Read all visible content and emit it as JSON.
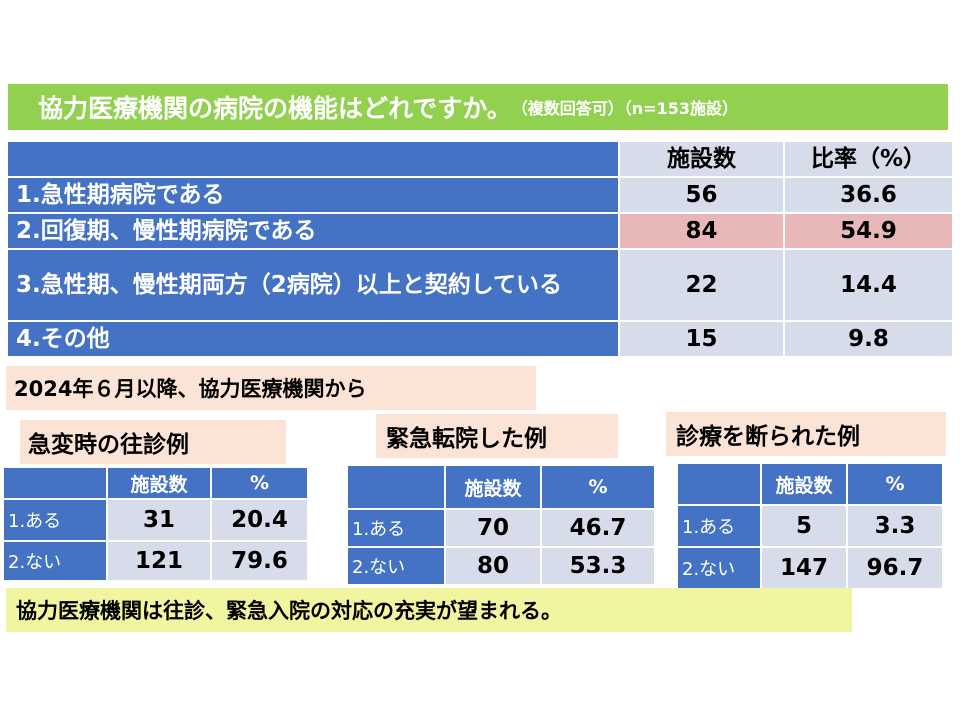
{
  "title": {
    "main": "協力医療機関の病院の機能はどれですか。",
    "sub": "（複数回答可）（n=153施設）"
  },
  "main_table": {
    "headers": [
      "施設数",
      "比率（%）"
    ],
    "rows": [
      {
        "label": "1.急性期病院である",
        "count": "56",
        "ratio": "36.6"
      },
      {
        "label": "2.回復期、慢性期病院である",
        "count": "84",
        "ratio": "54.9"
      },
      {
        "label": "3.急性期、慢性期両方（2病院）以上と契約している",
        "count": "22",
        "ratio": "14.4"
      },
      {
        "label": "4.その他",
        "count": "15",
        "ratio": "9.8"
      }
    ]
  },
  "period_label": "2024年６月以降、協力医療機関から",
  "sections": [
    {
      "title": "急変時の往診例",
      "headers": [
        "施設数",
        "%"
      ],
      "rows": [
        {
          "label": "1.ある",
          "count": "31",
          "pct": "20.4"
        },
        {
          "label": "2.ない",
          "count": "121",
          "pct": "79.6"
        }
      ]
    },
    {
      "title": "緊急転院した例",
      "headers": [
        "施設数",
        "%"
      ],
      "rows": [
        {
          "label": "1.ある",
          "count": "70",
          "pct": "46.7"
        },
        {
          "label": "2.ない",
          "count": "80",
          "pct": "53.3"
        }
      ]
    },
    {
      "title": "診療を断られた例",
      "headers": [
        "施設数",
        "%"
      ],
      "rows": [
        {
          "label": "1.ある",
          "count": "5",
          "pct": "3.3"
        },
        {
          "label": "2.ない",
          "count": "147",
          "pct": "96.7"
        }
      ]
    }
  ],
  "conclusion": "協力医療機関は往診、緊急入院の対応の充実が望まれる。",
  "colors": {
    "title_bg": "#92d050",
    "header_blue": "#4472c4",
    "cell_gray": "#d7dcea",
    "highlight_pink": "#e8b8b8",
    "label_peach": "#fbe3d6",
    "conclusion_yellow": "#f2f5a0"
  }
}
